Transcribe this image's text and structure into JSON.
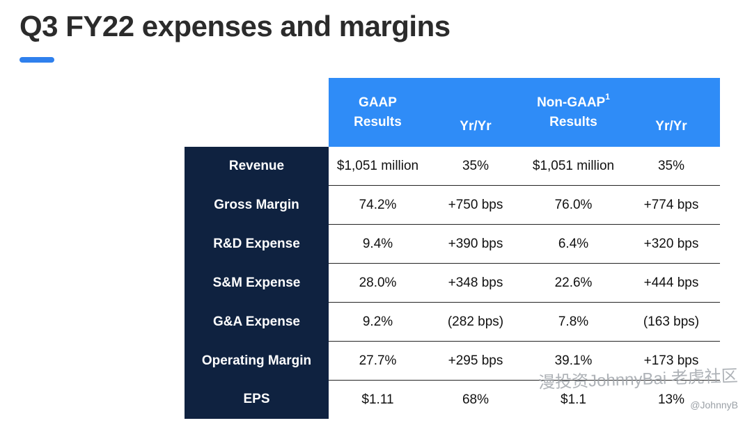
{
  "slide": {
    "title": "Q3 FY22 expenses and margins",
    "accent_color": "#2f80ed"
  },
  "table": {
    "header_color": "#2f8cf7",
    "label_column_color": "#0f2240",
    "headers": {
      "gaap_results_line1": "GAAP",
      "gaap_results_line2": "Results",
      "gaap_yoy": "Yr/Yr",
      "non_gaap_results_line1": "Non-GAAP",
      "non_gaap_footnote": "1",
      "non_gaap_results_line2": "Results",
      "non_gaap_yoy": "Yr/Yr"
    },
    "rows": [
      {
        "label": "Revenue",
        "gaap": "$1,051 million",
        "gaap_yoy": "35%",
        "non_gaap": "$1,051 million",
        "non_gaap_yoy": "35%"
      },
      {
        "label": "Gross Margin",
        "gaap": "74.2%",
        "gaap_yoy": "+750 bps",
        "non_gaap": "76.0%",
        "non_gaap_yoy": "+774 bps"
      },
      {
        "label": "R&D Expense",
        "gaap": "9.4%",
        "gaap_yoy": "+390 bps",
        "non_gaap": "6.4%",
        "non_gaap_yoy": "+320 bps"
      },
      {
        "label": "S&M Expense",
        "gaap": "28.0%",
        "gaap_yoy": "+348 bps",
        "non_gaap": "22.6%",
        "non_gaap_yoy": "+444 bps"
      },
      {
        "label": "G&A Expense",
        "gaap": "9.2%",
        "gaap_yoy": "(282 bps)",
        "non_gaap": "7.8%",
        "non_gaap_yoy": "(163 bps)"
      },
      {
        "label": "Operating Margin",
        "gaap": "27.7%",
        "gaap_yoy": "+295 bps",
        "non_gaap": "39.1%",
        "non_gaap_yoy": "+173 bps"
      },
      {
        "label": "EPS",
        "gaap": "$1.11",
        "gaap_yoy": "68%",
        "non_gaap": "$1.1",
        "non_gaap_yoy": "13%"
      }
    ]
  },
  "watermark": {
    "text": "漫投资JohnnyBai 老虎社区",
    "handle": "@JohnnyB"
  }
}
